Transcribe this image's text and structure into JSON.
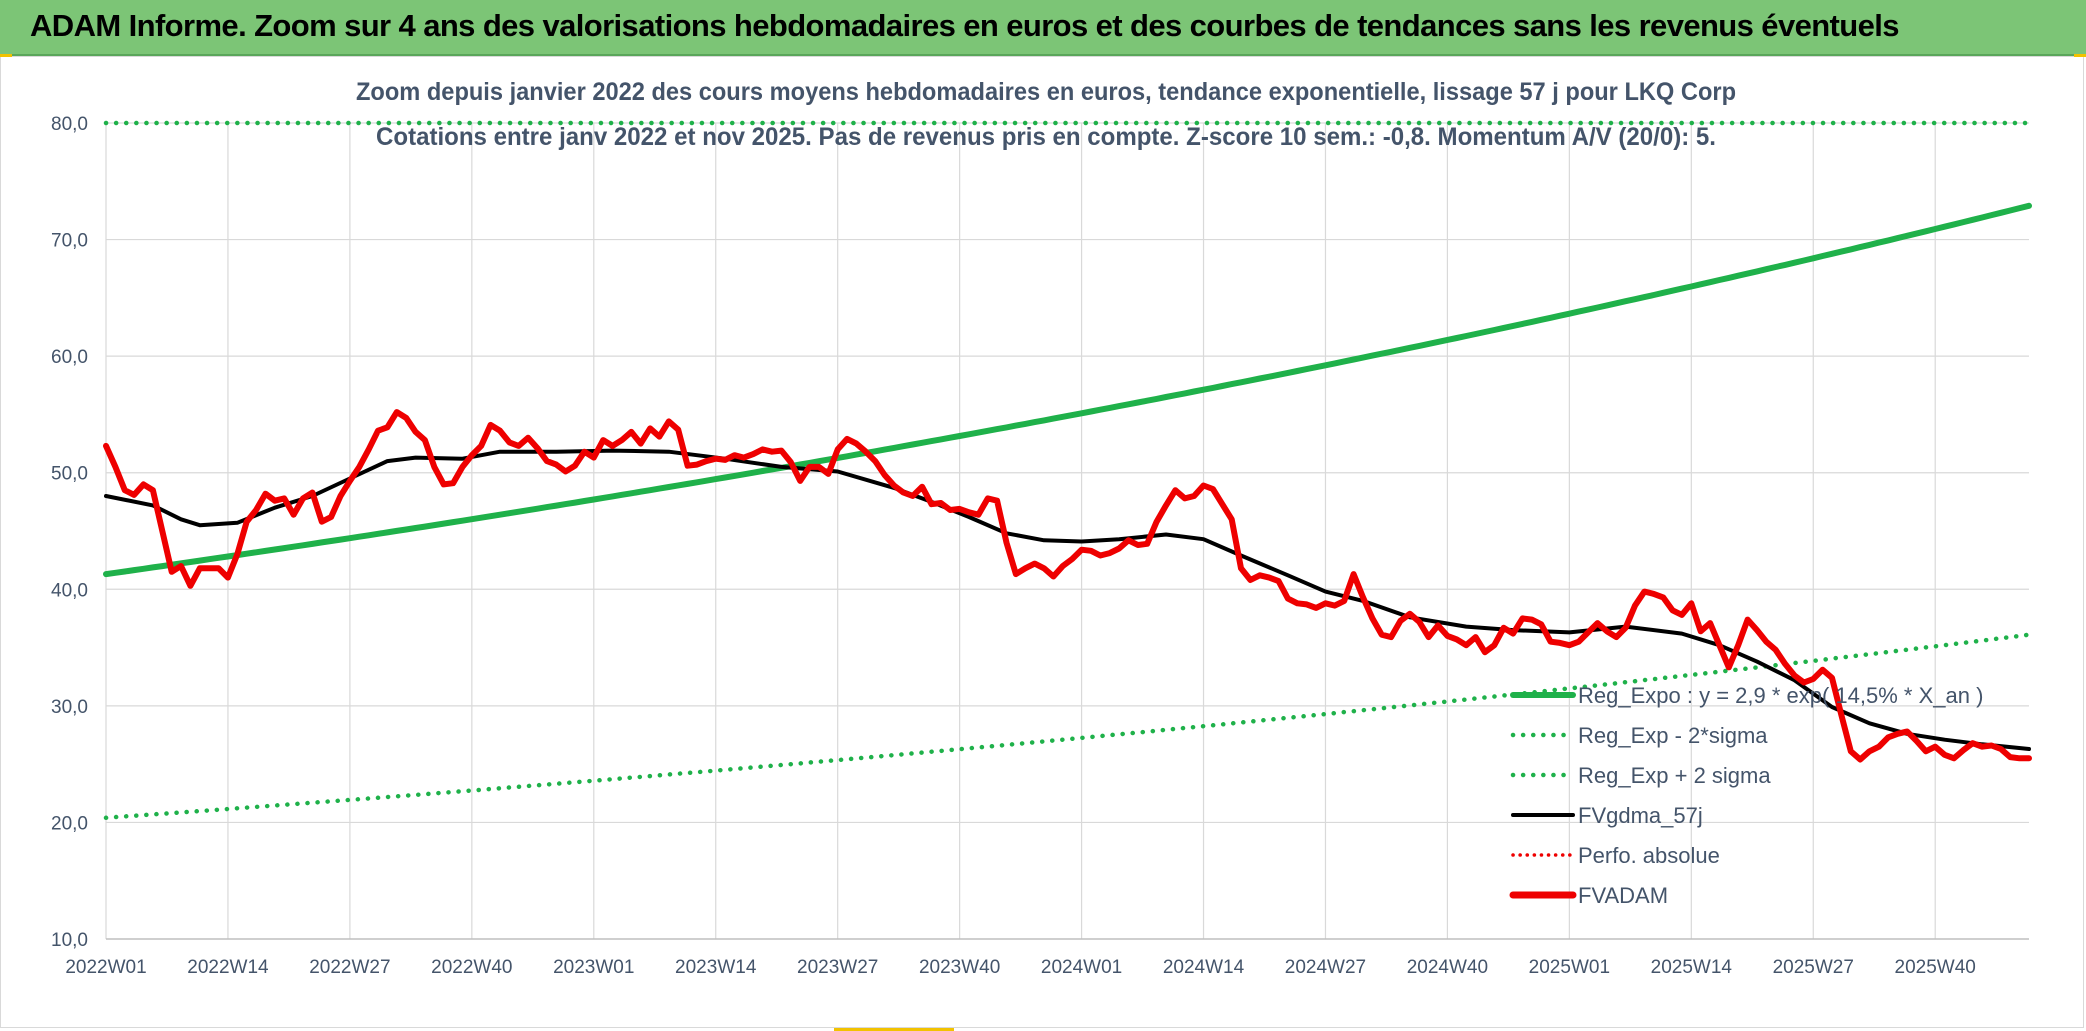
{
  "banner": {
    "title": "ADAM Informe. Zoom sur 4 ans des valorisations hebdomadaires en euros et des courbes de tendances sans les revenus éventuels"
  },
  "colors": {
    "banner_bg": "#7cc576",
    "reg_green": "#1fb14a",
    "band_green": "#1fb14a",
    "black": "#000000",
    "red": "#ee0000",
    "axis_text": "#44546a",
    "grid": "#d9d9d9"
  },
  "chart_data": {
    "type": "line",
    "title_line1": "Zoom depuis janvier 2022 des cours moyens hebdomadaires en euros, tendance exponentielle, lissage 57 j pour LKQ Corp",
    "title_line2": "Cotations entre janv 2022 et nov 2025. Pas de revenus pris en compte. Z-score 10 sem.: -0,8. Momentum A/V (20/0): 5.",
    "x_tick_labels": [
      "2022W01",
      "2022W14",
      "2022W27",
      "2022W40",
      "2023W01",
      "2023W14",
      "2023W27",
      "2023W40",
      "2024W01",
      "2024W14",
      "2024W27",
      "2024W40",
      "2025W01",
      "2025W14",
      "2025W27",
      "2025W40"
    ],
    "x_tick_weeks": [
      0,
      13,
      26,
      39,
      52,
      65,
      78,
      91,
      104,
      117,
      130,
      143,
      156,
      169,
      182,
      195
    ],
    "n_weeks": 205,
    "y_ticks": [
      "10,0",
      "20,0",
      "30,0",
      "40,0",
      "50,0",
      "60,0",
      "70,0",
      "80,0"
    ],
    "y_tick_values": [
      10,
      20,
      30,
      40,
      50,
      60,
      70,
      80
    ],
    "ylim": [
      10,
      80
    ],
    "legend": [
      {
        "key": "reg",
        "label": "Reg_Expo : y = 2,9 * exp( 14,5% *  X_an )",
        "style": "solid-green"
      },
      {
        "key": "low",
        "label": "Reg_Exp - 2*sigma",
        "style": "dotted-green"
      },
      {
        "key": "high",
        "label": "Reg_Exp + 2 sigma",
        "style": "dotted-green"
      },
      {
        "key": "fv",
        "label": "FVgdma_57j",
        "style": "solid-black"
      },
      {
        "key": "perf",
        "label": "Perfo. absolue",
        "style": "dotted-red"
      },
      {
        "key": "adam",
        "label": "FVADAM",
        "style": "thick-red"
      }
    ],
    "series": [
      {
        "name": "Reg_Expo",
        "start": 41.3,
        "end": 72.9
      },
      {
        "name": "Reg_Exp - 2*sigma",
        "start": 20.4,
        "end": 36.1
      },
      {
        "name": "Reg_Exp + 2 sigma",
        "start": 80.0,
        "end": 80.0
      },
      {
        "name": "FVgdma_57j",
        "points": [
          [
            0,
            48.0
          ],
          [
            5,
            47.2
          ],
          [
            8,
            46.0
          ],
          [
            10,
            45.5
          ],
          [
            14,
            45.7
          ],
          [
            18,
            47.0
          ],
          [
            22,
            48.0
          ],
          [
            26,
            49.5
          ],
          [
            30,
            51.0
          ],
          [
            33,
            51.3
          ],
          [
            38,
            51.2
          ],
          [
            42,
            51.8
          ],
          [
            48,
            51.8
          ],
          [
            54,
            51.9
          ],
          [
            60,
            51.8
          ],
          [
            66,
            51.2
          ],
          [
            72,
            50.5
          ],
          [
            78,
            50.1
          ],
          [
            84,
            48.7
          ],
          [
            88,
            47.5
          ],
          [
            92,
            46.2
          ],
          [
            96,
            44.8
          ],
          [
            100,
            44.2
          ],
          [
            104,
            44.1
          ],
          [
            108,
            44.3
          ],
          [
            113,
            44.7
          ],
          [
            117,
            44.3
          ],
          [
            121,
            42.9
          ],
          [
            126,
            41.2
          ],
          [
            130,
            39.8
          ],
          [
            134,
            39.0
          ],
          [
            139,
            37.6
          ],
          [
            145,
            36.8
          ],
          [
            150,
            36.5
          ],
          [
            156,
            36.3
          ],
          [
            162,
            36.8
          ],
          [
            168,
            36.2
          ],
          [
            172,
            35.2
          ],
          [
            176,
            33.8
          ],
          [
            180,
            32.2
          ],
          [
            184,
            29.9
          ],
          [
            188,
            28.5
          ],
          [
            192,
            27.6
          ],
          [
            196,
            27.1
          ],
          [
            200,
            26.7
          ],
          [
            205,
            26.3
          ]
        ]
      },
      {
        "name": "FVADAM",
        "points": [
          [
            0,
            52.3
          ],
          [
            1,
            50.5
          ],
          [
            2,
            48.5
          ],
          [
            3,
            48.1
          ],
          [
            4,
            49.0
          ],
          [
            5,
            48.5
          ],
          [
            6,
            45.0
          ],
          [
            7,
            41.5
          ],
          [
            8,
            42.0
          ],
          [
            9,
            40.3
          ],
          [
            10,
            41.8
          ],
          [
            11,
            41.8
          ],
          [
            12,
            41.8
          ],
          [
            13,
            41.0
          ],
          [
            14,
            43.0
          ],
          [
            15,
            45.8
          ],
          [
            16,
            46.8
          ],
          [
            17,
            48.2
          ],
          [
            18,
            47.6
          ],
          [
            19,
            47.8
          ],
          [
            20,
            46.4
          ],
          [
            21,
            47.8
          ],
          [
            22,
            48.3
          ],
          [
            23,
            45.8
          ],
          [
            24,
            46.2
          ],
          [
            25,
            48.0
          ],
          [
            26,
            49.3
          ],
          [
            27,
            50.5
          ],
          [
            28,
            52.0
          ],
          [
            29,
            53.6
          ],
          [
            30,
            53.9
          ],
          [
            31,
            55.2
          ],
          [
            32,
            54.7
          ],
          [
            33,
            53.5
          ],
          [
            34,
            52.8
          ],
          [
            35,
            50.5
          ],
          [
            36,
            49.0
          ],
          [
            37,
            49.1
          ],
          [
            38,
            50.5
          ],
          [
            39,
            51.5
          ],
          [
            40,
            52.3
          ],
          [
            41,
            54.1
          ],
          [
            42,
            53.6
          ],
          [
            43,
            52.6
          ],
          [
            44,
            52.3
          ],
          [
            45,
            53.0
          ],
          [
            46,
            52.1
          ],
          [
            47,
            51.0
          ],
          [
            48,
            50.7
          ],
          [
            49,
            50.1
          ],
          [
            50,
            50.6
          ],
          [
            51,
            51.8
          ],
          [
            52,
            51.3
          ],
          [
            53,
            52.8
          ],
          [
            54,
            52.3
          ],
          [
            55,
            52.8
          ],
          [
            56,
            53.5
          ],
          [
            57,
            52.5
          ],
          [
            58,
            53.8
          ],
          [
            59,
            53.1
          ],
          [
            60,
            54.4
          ],
          [
            61,
            53.7
          ],
          [
            62,
            50.6
          ],
          [
            63,
            50.7
          ],
          [
            64,
            51.0
          ],
          [
            65,
            51.2
          ],
          [
            66,
            51.1
          ],
          [
            67,
            51.5
          ],
          [
            68,
            51.3
          ],
          [
            69,
            51.6
          ],
          [
            70,
            52.0
          ],
          [
            71,
            51.8
          ],
          [
            72,
            51.9
          ],
          [
            73,
            50.9
          ],
          [
            74,
            49.3
          ],
          [
            75,
            50.5
          ],
          [
            76,
            50.5
          ],
          [
            77,
            49.9
          ],
          [
            78,
            52.0
          ],
          [
            79,
            52.9
          ],
          [
            80,
            52.5
          ],
          [
            81,
            51.8
          ],
          [
            82,
            51.0
          ],
          [
            83,
            49.8
          ],
          [
            84,
            48.9
          ],
          [
            85,
            48.3
          ],
          [
            86,
            48.0
          ],
          [
            87,
            48.8
          ],
          [
            88,
            47.3
          ],
          [
            89,
            47.4
          ],
          [
            90,
            46.8
          ],
          [
            91,
            46.9
          ],
          [
            92,
            46.6
          ],
          [
            93,
            46.4
          ],
          [
            94,
            47.8
          ],
          [
            95,
            47.6
          ],
          [
            96,
            44.0
          ],
          [
            97,
            41.3
          ],
          [
            98,
            41.8
          ],
          [
            99,
            42.2
          ],
          [
            100,
            41.8
          ],
          [
            101,
            41.1
          ],
          [
            102,
            42.0
          ],
          [
            103,
            42.6
          ],
          [
            104,
            43.4
          ],
          [
            105,
            43.3
          ],
          [
            106,
            42.9
          ],
          [
            107,
            43.1
          ],
          [
            108,
            43.5
          ],
          [
            109,
            44.2
          ],
          [
            110,
            43.8
          ],
          [
            111,
            43.9
          ],
          [
            112,
            45.8
          ],
          [
            113,
            47.2
          ],
          [
            114,
            48.5
          ],
          [
            115,
            47.8
          ],
          [
            116,
            48.0
          ],
          [
            117,
            48.9
          ],
          [
            118,
            48.6
          ],
          [
            119,
            47.3
          ],
          [
            120,
            46.0
          ],
          [
            121,
            41.8
          ],
          [
            122,
            40.8
          ],
          [
            123,
            41.2
          ],
          [
            124,
            41.0
          ],
          [
            125,
            40.7
          ],
          [
            126,
            39.2
          ],
          [
            127,
            38.8
          ],
          [
            128,
            38.7
          ],
          [
            129,
            38.4
          ],
          [
            130,
            38.8
          ],
          [
            131,
            38.6
          ],
          [
            132,
            39.0
          ],
          [
            133,
            41.3
          ],
          [
            134,
            39.3
          ],
          [
            135,
            37.5
          ],
          [
            136,
            36.1
          ],
          [
            137,
            35.9
          ],
          [
            138,
            37.3
          ],
          [
            139,
            37.9
          ],
          [
            140,
            37.2
          ],
          [
            141,
            35.9
          ],
          [
            142,
            36.9
          ],
          [
            143,
            36.0
          ],
          [
            144,
            35.7
          ],
          [
            145,
            35.2
          ],
          [
            146,
            35.9
          ],
          [
            147,
            34.6
          ],
          [
            148,
            35.2
          ],
          [
            149,
            36.7
          ],
          [
            150,
            36.2
          ],
          [
            151,
            37.5
          ],
          [
            152,
            37.4
          ],
          [
            153,
            37.0
          ],
          [
            154,
            35.5
          ],
          [
            155,
            35.4
          ],
          [
            156,
            35.2
          ],
          [
            157,
            35.5
          ],
          [
            158,
            36.3
          ],
          [
            159,
            37.1
          ],
          [
            160,
            36.4
          ],
          [
            161,
            35.9
          ],
          [
            162,
            36.7
          ],
          [
            163,
            38.6
          ],
          [
            164,
            39.8
          ],
          [
            165,
            39.6
          ],
          [
            166,
            39.3
          ],
          [
            167,
            38.2
          ],
          [
            168,
            37.8
          ],
          [
            169,
            38.8
          ],
          [
            170,
            36.4
          ],
          [
            171,
            37.1
          ],
          [
            172,
            35.2
          ],
          [
            173,
            33.3
          ],
          [
            174,
            35.2
          ],
          [
            175,
            37.4
          ],
          [
            176,
            36.5
          ],
          [
            177,
            35.5
          ],
          [
            178,
            34.8
          ],
          [
            179,
            33.6
          ],
          [
            180,
            32.6
          ],
          [
            181,
            32.0
          ],
          [
            182,
            32.3
          ],
          [
            183,
            33.1
          ],
          [
            184,
            32.4
          ],
          [
            185,
            29.2
          ],
          [
            186,
            26.1
          ],
          [
            187,
            25.4
          ],
          [
            188,
            26.1
          ],
          [
            189,
            26.5
          ],
          [
            190,
            27.3
          ],
          [
            191,
            27.6
          ],
          [
            192,
            27.8
          ],
          [
            193,
            27.0
          ],
          [
            194,
            26.1
          ],
          [
            195,
            26.5
          ],
          [
            196,
            25.8
          ],
          [
            197,
            25.5
          ],
          [
            198,
            26.2
          ],
          [
            199,
            26.8
          ],
          [
            200,
            26.5
          ],
          [
            201,
            26.6
          ],
          [
            202,
            26.3
          ],
          [
            203,
            25.6
          ],
          [
            204,
            25.5
          ],
          [
            205,
            25.5
          ]
        ]
      }
    ]
  }
}
